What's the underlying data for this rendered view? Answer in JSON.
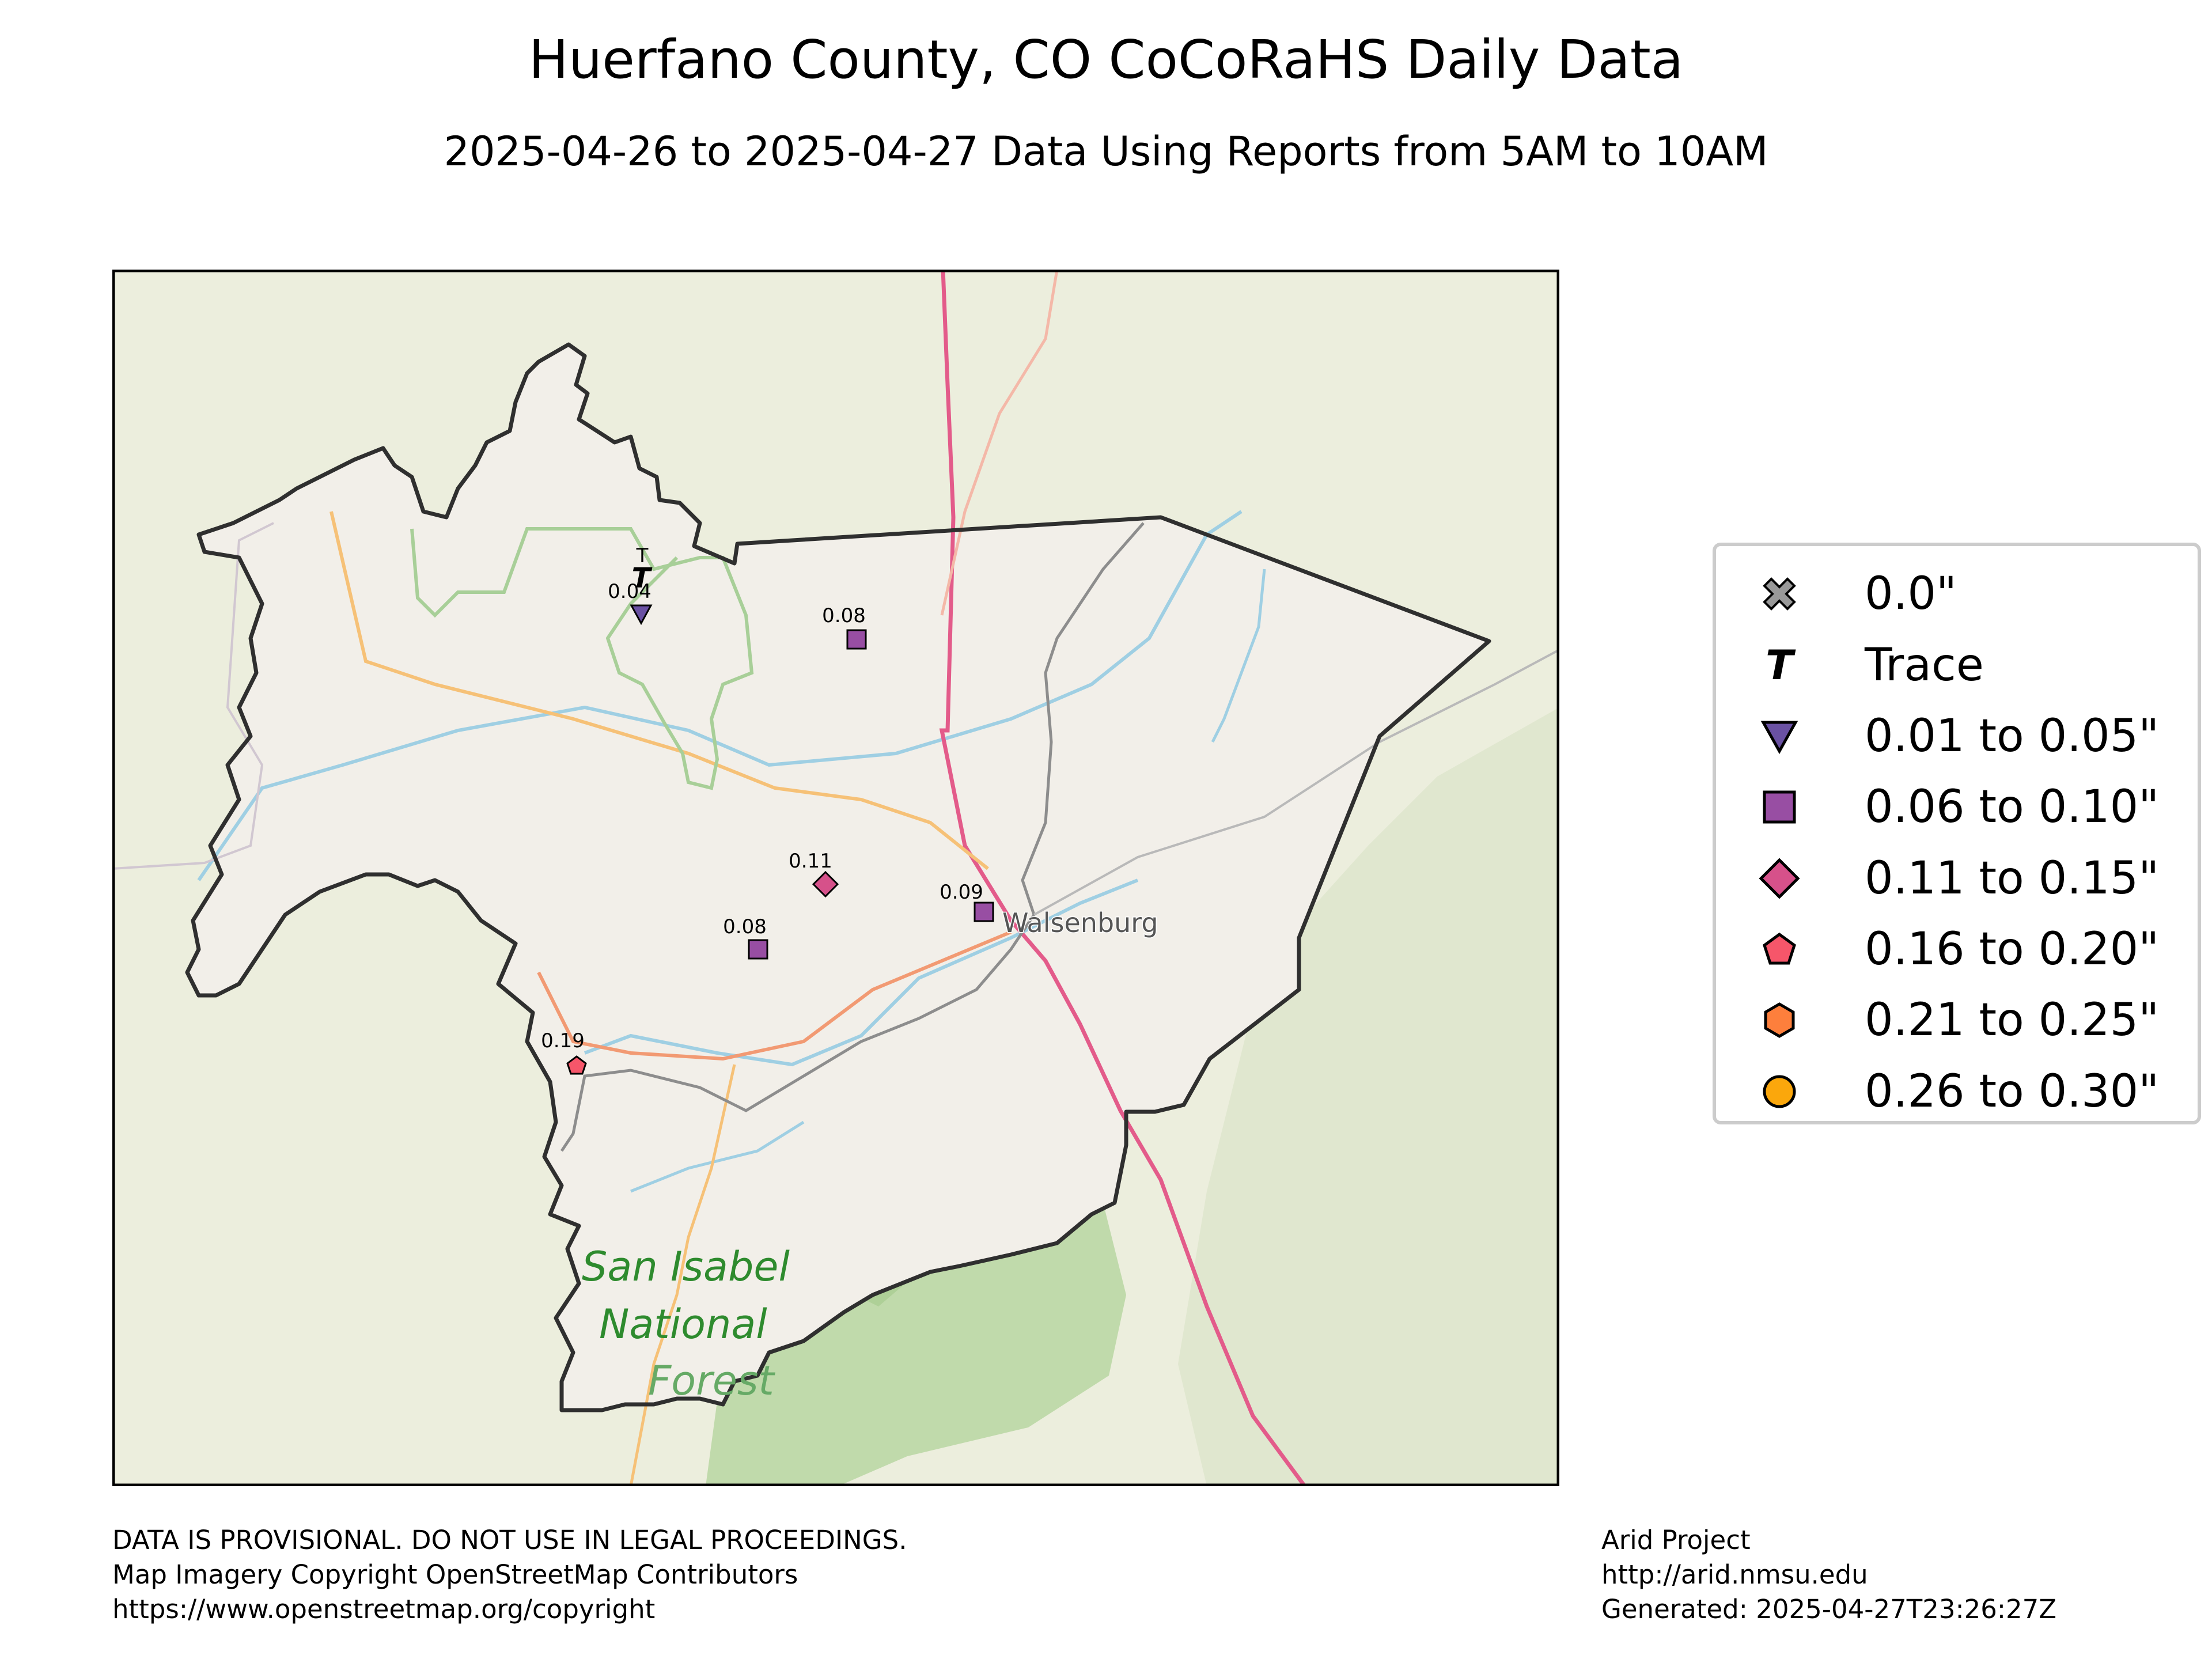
{
  "title": "Huerfano County, CO CoCoRaHS Daily Data",
  "subtitle": "2025-04-26 to 2025-04-27 Data Using Reports from 5AM to 10AM",
  "map": {
    "place_label": "Walsenburg",
    "forest_label_1": "San Isabel",
    "forest_label_2": "National",
    "forest_label_3": "Forest"
  },
  "stations": [
    {
      "value_label": "T",
      "category": "trace"
    },
    {
      "value_label": "0.04",
      "category": "0.01-0.05"
    },
    {
      "value_label": "0.08",
      "category": "0.06-0.10"
    },
    {
      "value_label": "0.11",
      "category": "0.11-0.15"
    },
    {
      "value_label": "0.09",
      "category": "0.06-0.10"
    },
    {
      "value_label": "0.08",
      "category": "0.06-0.10"
    },
    {
      "value_label": "0.19",
      "category": "0.16-0.20"
    }
  ],
  "legend": {
    "items": [
      {
        "label": "0.0\"",
        "symbol": "x-icon",
        "color": "#999999"
      },
      {
        "label": "Trace",
        "symbol": "trace-t-icon",
        "color": "#000000"
      },
      {
        "label": "0.01 to 0.05\"",
        "symbol": "triangle-down-icon",
        "color": "#6a51a3"
      },
      {
        "label": "0.06 to 0.10\"",
        "symbol": "square-icon",
        "color": "#984ea3"
      },
      {
        "label": "0.11 to 0.15\"",
        "symbol": "diamond-icon",
        "color": "#d6518a"
      },
      {
        "label": "0.16 to 0.20\"",
        "symbol": "pentagon-icon",
        "color": "#f6566a"
      },
      {
        "label": "0.21 to 0.25\"",
        "symbol": "hexagon-icon",
        "color": "#fd7f3c"
      },
      {
        "label": "0.26 to 0.30\"",
        "symbol": "circle-icon",
        "color": "#fba70c"
      }
    ]
  },
  "footer": {
    "left_lines": [
      "DATA IS PROVISIONAL. DO NOT USE IN LEGAL PROCEEDINGS.",
      "Map Imagery Copyright OpenStreetMap Contributors",
      "https://www.openstreetmap.org/copyright"
    ],
    "right_lines": [
      "Arid Project",
      "http://arid.nmsu.edu",
      "Generated: 2025-04-27T23:26:27Z"
    ]
  }
}
